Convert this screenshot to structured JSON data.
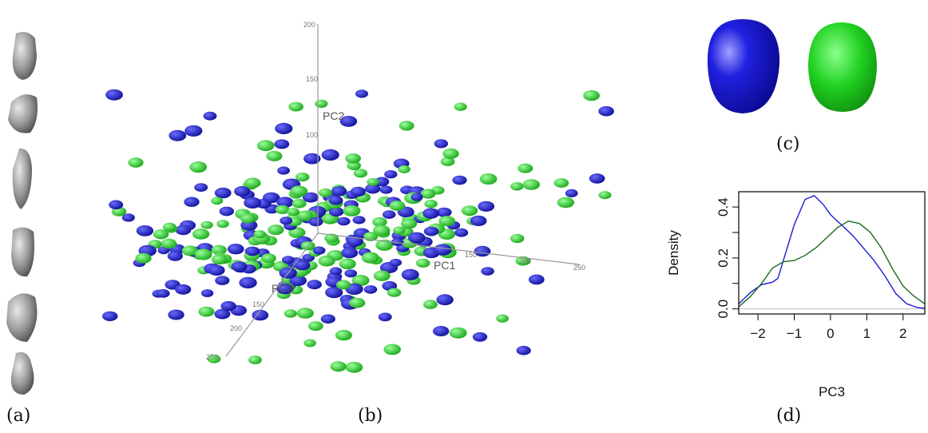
{
  "panels": {
    "a": {
      "label": "(a)",
      "shape_count": 6,
      "shape_color": "#8c8c8c"
    },
    "b": {
      "label": "(b)",
      "axes": {
        "y": {
          "label": "PC2",
          "ticks": [
            "200",
            "150",
            "100"
          ]
        },
        "x": {
          "label": "PC1",
          "ticks": [
            "150",
            "200",
            "250"
          ]
        },
        "z": {
          "label": "PC3",
          "ticks": [
            "150",
            "200",
            "250"
          ]
        }
      },
      "groups": [
        {
          "color": "#1a1ab4"
        },
        {
          "color": "#22d022"
        }
      ]
    },
    "c": {
      "label": "(c)",
      "shapes": [
        {
          "color": "#1a1ad0"
        },
        {
          "color": "#1fd01f"
        }
      ]
    },
    "d": {
      "label": "(d)"
    }
  },
  "chart_data": {
    "type": "line",
    "xlabel": "PC3",
    "ylabel": "Density",
    "xlim": [
      -2.53,
      2.6
    ],
    "ylim": [
      -0.02,
      0.46
    ],
    "xticks": [
      "−2",
      "−1",
      "0",
      "1",
      "2"
    ],
    "xtick_values": [
      -2,
      -1,
      0,
      1,
      2
    ],
    "yticks": [
      "0.0",
      "0.2",
      "0.4"
    ],
    "ytick_values": [
      0,
      0.2,
      0.4
    ],
    "yminor_ticks": [
      0.1,
      0.3
    ],
    "grid": false,
    "baseline": 0,
    "series": [
      {
        "color": "#1a1ad6",
        "x": [
          -2.53,
          -2.2,
          -1.9,
          -1.6,
          -1.45,
          -1.3,
          -1.0,
          -0.7,
          -0.45,
          -0.2,
          0,
          0.3,
          0.6,
          0.9,
          1.2,
          1.5,
          1.8,
          2.1,
          2.4,
          2.6
        ],
        "y": [
          0.02,
          0.065,
          0.095,
          0.105,
          0.12,
          0.19,
          0.33,
          0.43,
          0.445,
          0.41,
          0.37,
          0.33,
          0.29,
          0.24,
          0.19,
          0.13,
          0.06,
          0.02,
          0.005,
          0.002
        ]
      },
      {
        "color": "#1a6b1a",
        "x": [
          -2.53,
          -2.2,
          -1.9,
          -1.6,
          -1.3,
          -1.0,
          -0.7,
          -0.4,
          -0.1,
          0.2,
          0.5,
          0.8,
          1.1,
          1.4,
          1.7,
          2.0,
          2.3,
          2.6
        ],
        "y": [
          0.008,
          0.05,
          0.1,
          0.16,
          0.185,
          0.19,
          0.21,
          0.24,
          0.28,
          0.32,
          0.345,
          0.335,
          0.3,
          0.24,
          0.16,
          0.09,
          0.05,
          0.02
        ]
      }
    ]
  }
}
